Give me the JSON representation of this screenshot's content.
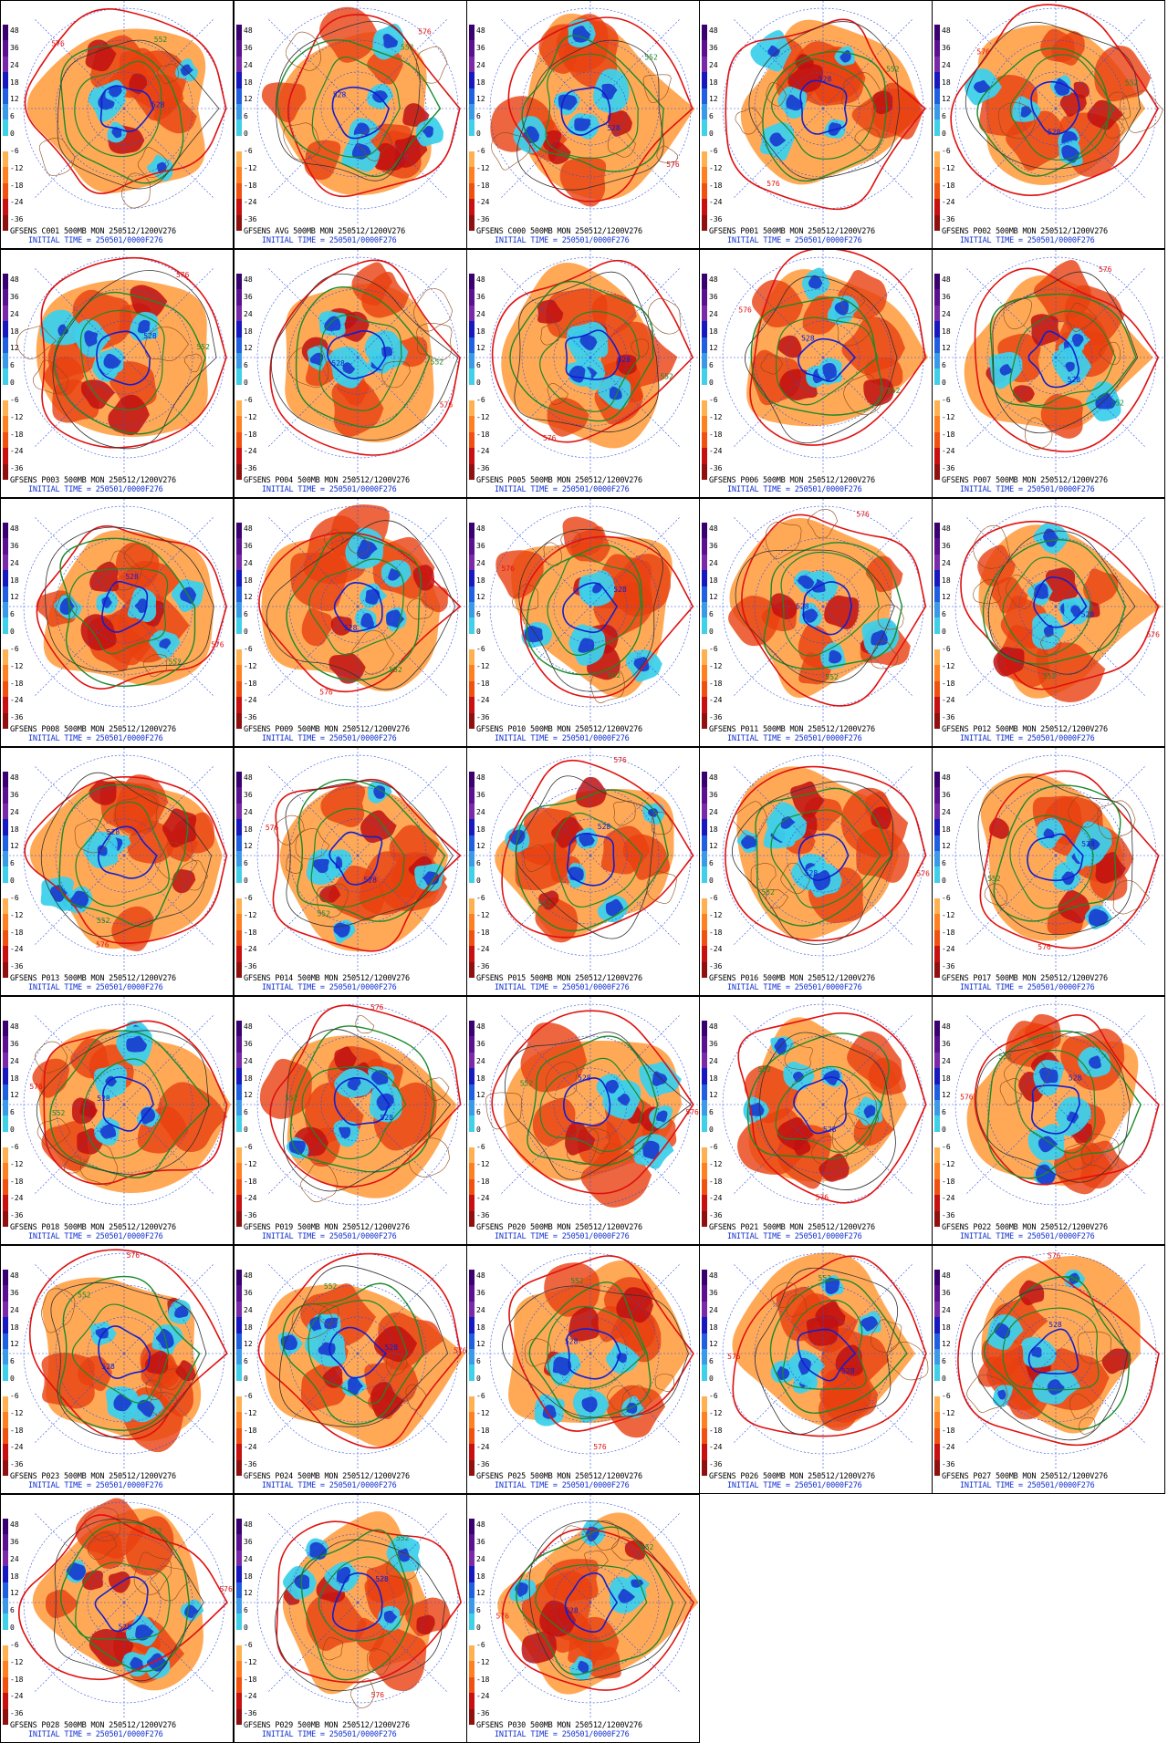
{
  "legend": {
    "ticks": [
      "48",
      "36",
      "24",
      "18",
      "12",
      "6",
      "0",
      "-6",
      "-12",
      "-18",
      "-24",
      "-36"
    ],
    "colors": [
      "#3a0070",
      "#5a1090",
      "#7a2aa8",
      "#1818c0",
      "#2060e0",
      "#3a9ae8",
      "#40d0e8",
      "#ffffff",
      "#ffb050",
      "#ff8020",
      "#f05010",
      "#c81010",
      "#901010"
    ]
  },
  "panels": [
    {
      "title": "GFSENS C001 500MB MON 250512/1200V276",
      "init": "INITIAL TIME = 250501/0000F276"
    },
    {
      "title": "GFSENS AVG 500MB MON 250512/1200V276",
      "init": "INITIAL TIME = 250501/0000F276"
    },
    {
      "title": "GFSENS C000 500MB MON 250512/1200V276",
      "init": "INITIAL TIME = 250501/0000F276"
    },
    {
      "title": "GFSENS P001 500MB MON 250512/1200V276",
      "init": "INITIAL TIME = 250501/0000F276"
    },
    {
      "title": "GFSENS P002 500MB MON 250512/1200V276",
      "init": "INITIAL TIME = 250501/0000F276"
    },
    {
      "title": "GFSENS P003 500MB MON 250512/1200V276",
      "init": "INITIAL TIME = 250501/0000F276"
    },
    {
      "title": "GFSENS P004 500MB MON 250512/1200V276",
      "init": "INITIAL TIME = 250501/0000F276"
    },
    {
      "title": "GFSENS P005 500MB MON 250512/1200V276",
      "init": "INITIAL TIME = 250501/0000F276"
    },
    {
      "title": "GFSENS P006 500MB MON 250512/1200V276",
      "init": "INITIAL TIME = 250501/0000F276"
    },
    {
      "title": "GFSENS P007 500MB MON 250512/1200V276",
      "init": "INITIAL TIME = 250501/0000F276"
    },
    {
      "title": "GFSENS P008 500MB MON 250512/1200V276",
      "init": "INITIAL TIME = 250501/0000F276"
    },
    {
      "title": "GFSENS P009 500MB MON 250512/1200V276",
      "init": "INITIAL TIME = 250501/0000F276"
    },
    {
      "title": "GFSENS P010 500MB MON 250512/1200V276",
      "init": "INITIAL TIME = 250501/0000F276"
    },
    {
      "title": "GFSENS P011 500MB MON 250512/1200V276",
      "init": "INITIAL TIME = 250501/0000F276"
    },
    {
      "title": "GFSENS P012 500MB MON 250512/1200V276",
      "init": "INITIAL TIME = 250501/0000F276"
    },
    {
      "title": "GFSENS P013 500MB MON 250512/1200V276",
      "init": "INITIAL TIME = 250501/0000F276"
    },
    {
      "title": "GFSENS P014 500MB MON 250512/1200V276",
      "init": "INITIAL TIME = 250501/0000F276"
    },
    {
      "title": "GFSENS P015 500MB MON 250512/1200V276",
      "init": "INITIAL TIME = 250501/0000F276"
    },
    {
      "title": "GFSENS P016 500MB MON 250512/1200V276",
      "init": "INITIAL TIME = 250501/0000F276"
    },
    {
      "title": "GFSENS P017 500MB MON 250512/1200V276",
      "init": "INITIAL TIME = 250501/0000F276"
    },
    {
      "title": "GFSENS P018 500MB MON 250512/1200V276",
      "init": "INITIAL TIME = 250501/0000F276"
    },
    {
      "title": "GFSENS P019 500MB MON 250512/1200V276",
      "init": "INITIAL TIME = 250501/0000F276"
    },
    {
      "title": "GFSENS P020 500MB MON 250512/1200V276",
      "init": "INITIAL TIME = 250501/0000F276"
    },
    {
      "title": "GFSENS P021 500MB MON 250512/1200V276",
      "init": "INITIAL TIME = 250501/0000F276"
    },
    {
      "title": "GFSENS P022 500MB MON 250512/1200V276",
      "init": "INITIAL TIME = 250501/0000F276"
    },
    {
      "title": "GFSENS P023 500MB MON 250512/1200V276",
      "init": "INITIAL TIME = 250501/0000F276"
    },
    {
      "title": "GFSENS P024 500MB MON 250512/1200V276",
      "init": "INITIAL TIME = 250501/0000F276"
    },
    {
      "title": "GFSENS P025 500MB MON 250512/1200V276",
      "init": "INITIAL TIME = 250501/0000F276"
    },
    {
      "title": "GFSENS P026 500MB MON 250512/1200V276",
      "init": "INITIAL TIME = 250501/0000F276"
    },
    {
      "title": "GFSENS P027 500MB MON 250512/1200V276",
      "init": "INITIAL TIME = 250501/0000F276"
    },
    {
      "title": "GFSENS P028 500MB MON 250512/1200V276",
      "init": "INITIAL TIME = 250501/0000F276"
    },
    {
      "title": "GFSENS P029 500MB MON 250512/1200V276",
      "init": "INITIAL TIME = 250501/0000F276"
    },
    {
      "title": "GFSENS P030 500MB MON 250512/1200V276",
      "init": "INITIAL TIME = 250501/0000F276"
    }
  ],
  "contour_labels": [
    "528",
    "552",
    "576"
  ]
}
